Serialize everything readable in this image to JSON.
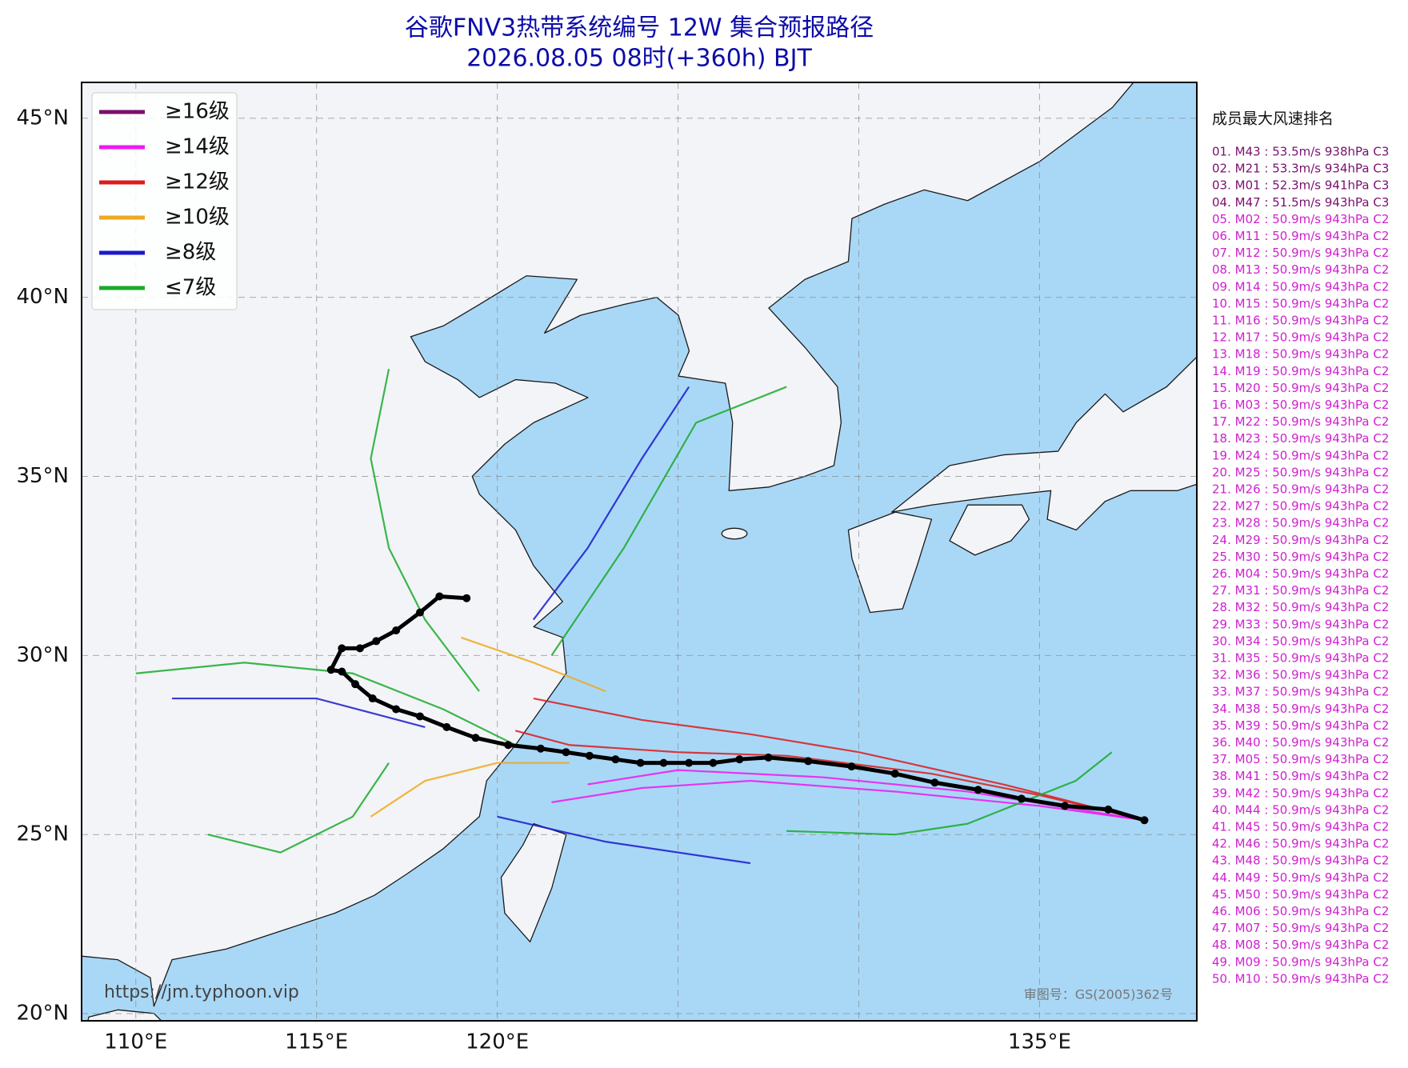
{
  "chart_data": {
    "type": "track-map",
    "title": "谷歌FNV3热带系统编号 12W 集合预报路径",
    "subtitle": "2026.08.05 08时(+360h) BJT",
    "xlim": [
      108.5,
      139.35
    ],
    "ylim": [
      19.8,
      46
    ],
    "xticks": [
      {
        "value": 110,
        "label": "110°E"
      },
      {
        "value": 115,
        "label": "115°E"
      },
      {
        "value": 120,
        "label": "120°E"
      },
      {
        "value": 125,
        "label": null
      },
      {
        "value": 130,
        "label": null
      },
      {
        "value": 135,
        "label": "135°E"
      }
    ],
    "yticks": [
      {
        "value": 20,
        "label": "20°N"
      },
      {
        "value": 25,
        "label": "25°N"
      },
      {
        "value": 30,
        "label": "30°N"
      },
      {
        "value": 35,
        "label": "35°N"
      },
      {
        "value": 40,
        "label": "40°N"
      },
      {
        "value": 45,
        "label": "45°N"
      }
    ],
    "grid": true,
    "legend_position": "upper left",
    "legend": [
      {
        "name": "≥16级",
        "color": "#7a0f6e"
      },
      {
        "name": "≥14级",
        "color": "#ee1aee"
      },
      {
        "name": "≥12级",
        "color": "#dd1c1c"
      },
      {
        "name": "≥10级",
        "color": "#f0a820"
      },
      {
        "name": "≥8级",
        "color": "#1a1acc"
      },
      {
        "name": "≤7级",
        "color": "#1aaa2a"
      }
    ],
    "mean_track": {
      "color": "#000000",
      "lon": [
        137.9,
        136.9,
        135.7,
        134.5,
        133.3,
        132.1,
        131.0,
        129.8,
        128.6,
        127.5,
        126.7,
        125.97,
        125.3,
        124.6,
        123.96,
        123.27,
        122.55,
        121.9,
        121.2,
        120.3,
        119.4,
        118.6,
        117.86,
        117.2,
        116.55,
        116.07,
        115.7,
        115.4,
        115.7,
        116.2,
        116.65,
        117.2,
        117.86,
        118.4,
        119.15
      ],
      "lat": [
        25.4,
        25.7,
        25.8,
        26.0,
        26.25,
        26.45,
        26.7,
        26.9,
        27.05,
        27.15,
        27.1,
        27.0,
        27.0,
        27.0,
        27.0,
        27.1,
        27.2,
        27.3,
        27.4,
        27.5,
        27.7,
        28.0,
        28.3,
        28.5,
        28.8,
        29.2,
        29.55,
        29.6,
        30.2,
        30.2,
        30.4,
        30.7,
        31.2,
        31.65,
        31.6
      ]
    },
    "tracks": [
      {
        "color": "#dd1c1c",
        "lon": [
          137.9,
          135,
          132,
          128,
          125,
          122,
          120.5
        ],
        "lat": [
          25.4,
          26.1,
          26.7,
          27.2,
          27.3,
          27.5,
          27.9
        ]
      },
      {
        "color": "#ee1aee",
        "lon": [
          137.9,
          135,
          131,
          127,
          124,
          121.5
        ],
        "lat": [
          25.4,
          25.8,
          26.2,
          26.5,
          26.3,
          25.9
        ]
      },
      {
        "color": "#dd1c1c",
        "lon": [
          137.9,
          134,
          130,
          127,
          124,
          121
        ],
        "lat": [
          25.4,
          26.4,
          27.3,
          27.8,
          28.2,
          28.8
        ]
      },
      {
        "color": "#ee1aee",
        "lon": [
          137.9,
          133,
          129,
          125,
          122.5
        ],
        "lat": [
          25.4,
          26.2,
          26.6,
          26.8,
          26.4
        ]
      },
      {
        "color": "#f0a820",
        "lon": [
          122,
          120,
          118,
          116.5
        ],
        "lat": [
          27,
          27,
          26.5,
          25.5
        ]
      },
      {
        "color": "#f0a820",
        "lon": [
          123,
          121,
          119
        ],
        "lat": [
          29,
          29.8,
          30.5
        ]
      },
      {
        "color": "#1aaa2a",
        "lon": [
          120.5,
          118.5,
          116,
          113,
          110
        ],
        "lat": [
          27.5,
          28.5,
          29.5,
          29.8,
          29.5
        ]
      },
      {
        "color": "#1aaa2a",
        "lon": [
          119.5,
          118,
          117,
          116.5,
          117
        ],
        "lat": [
          29,
          31,
          33,
          35.5,
          38
        ]
      },
      {
        "color": "#1a1acc",
        "lon": [
          121,
          122.5,
          124,
          125.3
        ],
        "lat": [
          31,
          33,
          35.5,
          37.5
        ]
      },
      {
        "color": "#1aaa2a",
        "lon": [
          121.5,
          123.5,
          125.5,
          128
        ],
        "lat": [
          30,
          33,
          36.5,
          37.5
        ]
      },
      {
        "color": "#1a1acc",
        "lon": [
          120,
          123,
          127
        ],
        "lat": [
          25.5,
          24.8,
          24.2
        ]
      },
      {
        "color": "#1aaa2a",
        "lon": [
          128,
          131,
          133,
          136,
          137
        ],
        "lat": [
          25.1,
          25,
          25.3,
          26.5,
          27.3
        ]
      },
      {
        "color": "#1a1acc",
        "lon": [
          118,
          115,
          111
        ],
        "lat": [
          28,
          28.8,
          28.8
        ]
      },
      {
        "color": "#1aaa2a",
        "lon": [
          117,
          116,
          114,
          112
        ],
        "lat": [
          27,
          25.5,
          24.5,
          25
        ]
      }
    ],
    "ranking_title": "成员最大风速排名",
    "ranking": [
      {
        "text": "01. M43 : 53.5m/s 938hPa C3",
        "color": "#7a0f6e"
      },
      {
        "text": "02. M21 : 53.3m/s 934hPa C3",
        "color": "#7a0f6e"
      },
      {
        "text": "03. M01 : 52.3m/s 941hPa C3",
        "color": "#7a0f6e"
      },
      {
        "text": "04. M47 : 51.5m/s 943hPa C3",
        "color": "#7a0f6e"
      },
      {
        "text": "05. M02 : 50.9m/s 943hPa C2",
        "color": "#d020d0"
      },
      {
        "text": "06. M11 : 50.9m/s 943hPa C2",
        "color": "#d020d0"
      },
      {
        "text": "07. M12 : 50.9m/s 943hPa C2",
        "color": "#d020d0"
      },
      {
        "text": "08. M13 : 50.9m/s 943hPa C2",
        "color": "#d020d0"
      },
      {
        "text": "09. M14 : 50.9m/s 943hPa C2",
        "color": "#d020d0"
      },
      {
        "text": "10. M15 : 50.9m/s 943hPa C2",
        "color": "#d020d0"
      },
      {
        "text": "11. M16 : 50.9m/s 943hPa C2",
        "color": "#d020d0"
      },
      {
        "text": "12. M17 : 50.9m/s 943hPa C2",
        "color": "#d020d0"
      },
      {
        "text": "13. M18 : 50.9m/s 943hPa C2",
        "color": "#d020d0"
      },
      {
        "text": "14. M19 : 50.9m/s 943hPa C2",
        "color": "#d020d0"
      },
      {
        "text": "15. M20 : 50.9m/s 943hPa C2",
        "color": "#d020d0"
      },
      {
        "text": "16. M03 : 50.9m/s 943hPa C2",
        "color": "#d020d0"
      },
      {
        "text": "17. M22 : 50.9m/s 943hPa C2",
        "color": "#d020d0"
      },
      {
        "text": "18. M23 : 50.9m/s 943hPa C2",
        "color": "#d020d0"
      },
      {
        "text": "19. M24 : 50.9m/s 943hPa C2",
        "color": "#d020d0"
      },
      {
        "text": "20. M25 : 50.9m/s 943hPa C2",
        "color": "#d020d0"
      },
      {
        "text": "21. M26 : 50.9m/s 943hPa C2",
        "color": "#d020d0"
      },
      {
        "text": "22. M27 : 50.9m/s 943hPa C2",
        "color": "#d020d0"
      },
      {
        "text": "23. M28 : 50.9m/s 943hPa C2",
        "color": "#d020d0"
      },
      {
        "text": "24. M29 : 50.9m/s 943hPa C2",
        "color": "#d020d0"
      },
      {
        "text": "25. M30 : 50.9m/s 943hPa C2",
        "color": "#d020d0"
      },
      {
        "text": "26. M04 : 50.9m/s 943hPa C2",
        "color": "#d020d0"
      },
      {
        "text": "27. M31 : 50.9m/s 943hPa C2",
        "color": "#d020d0"
      },
      {
        "text": "28. M32 : 50.9m/s 943hPa C2",
        "color": "#d020d0"
      },
      {
        "text": "29. M33 : 50.9m/s 943hPa C2",
        "color": "#d020d0"
      },
      {
        "text": "30. M34 : 50.9m/s 943hPa C2",
        "color": "#d020d0"
      },
      {
        "text": "31. M35 : 50.9m/s 943hPa C2",
        "color": "#d020d0"
      },
      {
        "text": "32. M36 : 50.9m/s 943hPa C2",
        "color": "#d020d0"
      },
      {
        "text": "33. M37 : 50.9m/s 943hPa C2",
        "color": "#d020d0"
      },
      {
        "text": "34. M38 : 50.9m/s 943hPa C2",
        "color": "#d020d0"
      },
      {
        "text": "35. M39 : 50.9m/s 943hPa C2",
        "color": "#d020d0"
      },
      {
        "text": "36. M40 : 50.9m/s 943hPa C2",
        "color": "#d020d0"
      },
      {
        "text": "37. M05 : 50.9m/s 943hPa C2",
        "color": "#d020d0"
      },
      {
        "text": "38. M41 : 50.9m/s 943hPa C2",
        "color": "#d020d0"
      },
      {
        "text": "39. M42 : 50.9m/s 943hPa C2",
        "color": "#d020d0"
      },
      {
        "text": "40. M44 : 50.9m/s 943hPa C2",
        "color": "#d020d0"
      },
      {
        "text": "41. M45 : 50.9m/s 943hPa C2",
        "color": "#d020d0"
      },
      {
        "text": "42. M46 : 50.9m/s 943hPa C2",
        "color": "#d020d0"
      },
      {
        "text": "43. M48 : 50.9m/s 943hPa C2",
        "color": "#d020d0"
      },
      {
        "text": "44. M49 : 50.9m/s 943hPa C2",
        "color": "#d020d0"
      },
      {
        "text": "45. M50 : 50.9m/s 943hPa C2",
        "color": "#d020d0"
      },
      {
        "text": "46. M06 : 50.9m/s 943hPa C2",
        "color": "#d020d0"
      },
      {
        "text": "47. M07 : 50.9m/s 943hPa C2",
        "color": "#d020d0"
      },
      {
        "text": "48. M08 : 50.9m/s 943hPa C2",
        "color": "#d020d0"
      },
      {
        "text": "49. M09 : 50.9m/s 943hPa C2",
        "color": "#d020d0"
      },
      {
        "text": "50. M10 : 50.9m/s 943hPa C2",
        "color": "#d020d0"
      }
    ],
    "source": "https://jm.typhoon.vip",
    "map_approval": "审图号：GS(2005)362号"
  }
}
